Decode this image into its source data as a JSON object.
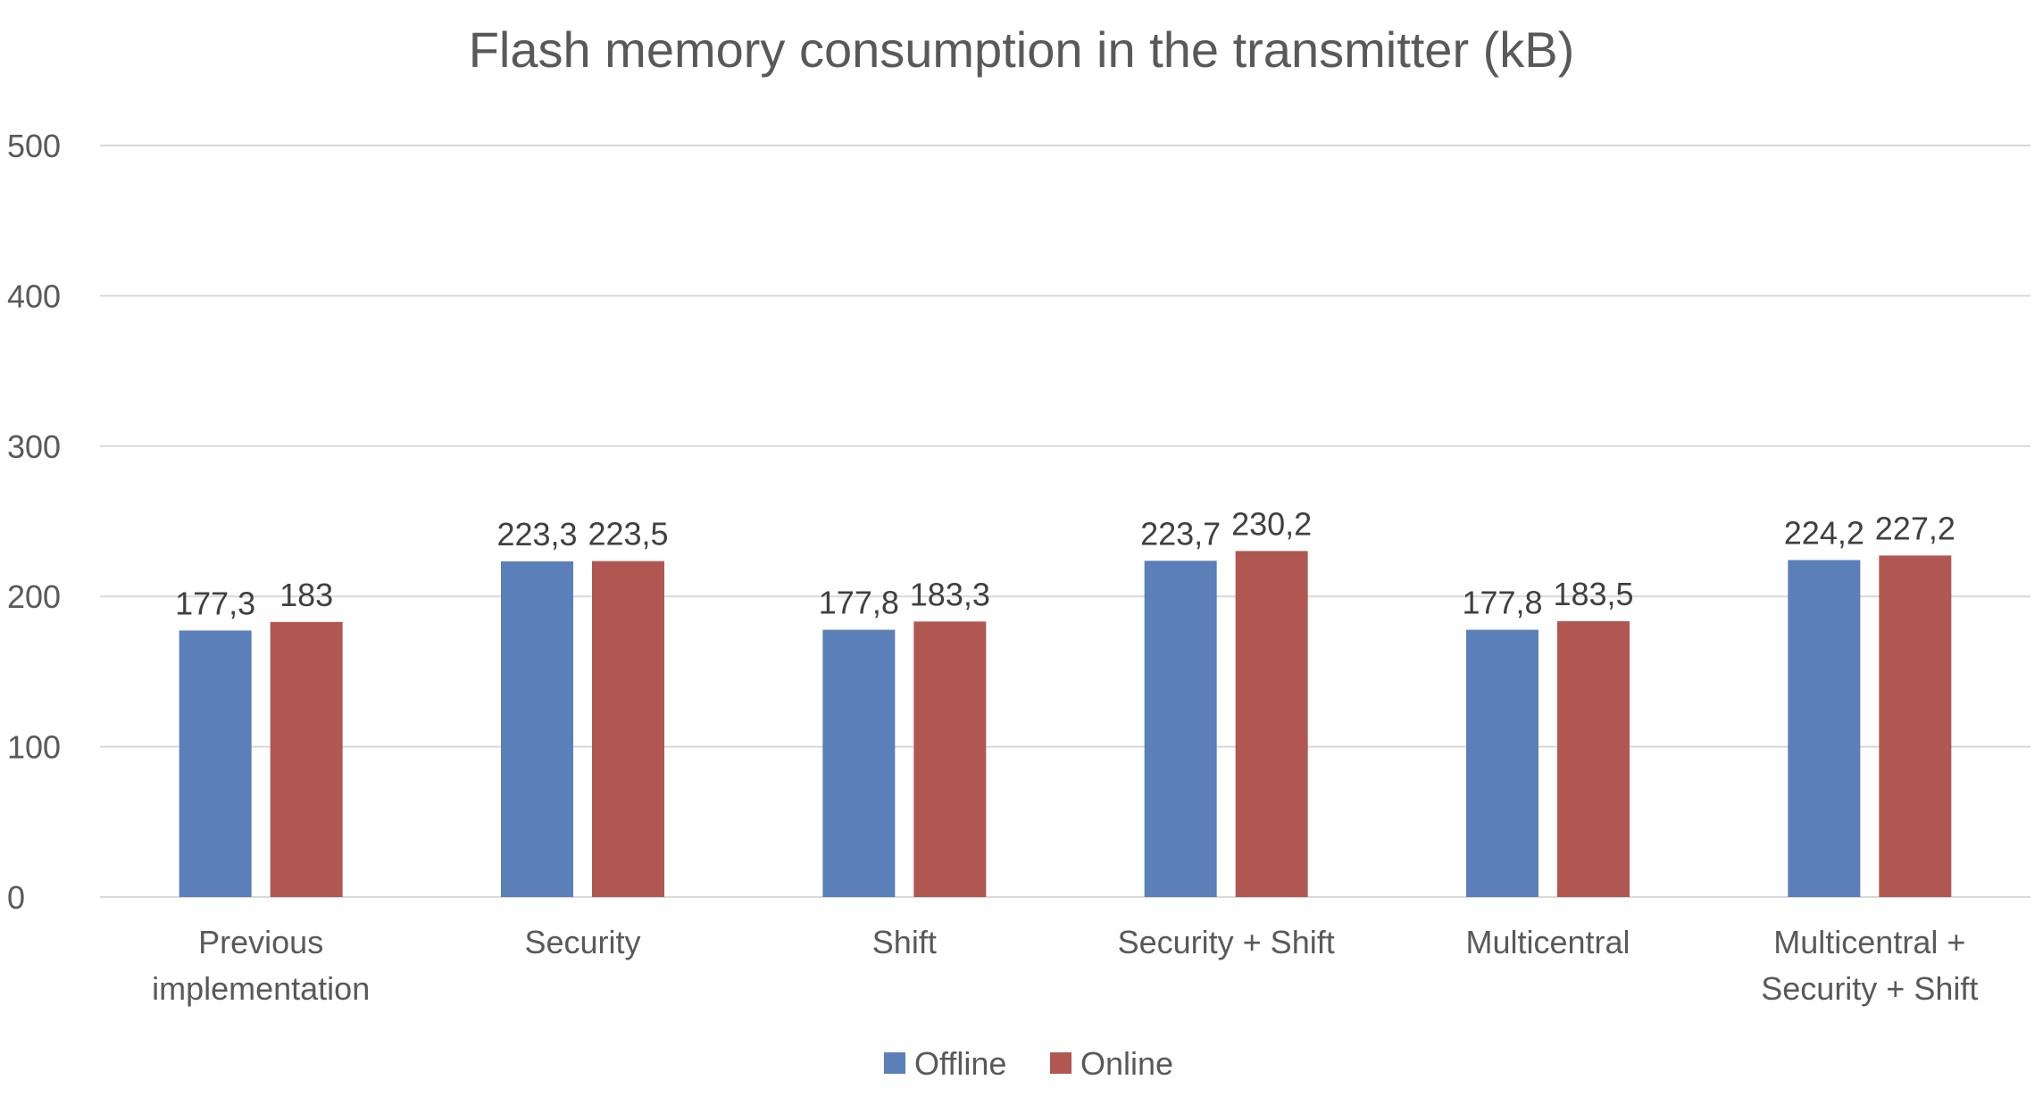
{
  "chart_data": {
    "type": "bar",
    "title": "Flash memory consumption in the transmitter (kB)",
    "xlabel": "",
    "ylabel": "",
    "ylim": [
      0,
      500
    ],
    "yticks": [
      "0",
      "100",
      "200",
      "300",
      "400",
      "500"
    ],
    "grid": true,
    "legend_position": "bottom",
    "categories": [
      [
        "Previous",
        "implementation"
      ],
      [
        "Security"
      ],
      [
        "Shift"
      ],
      [
        "Security + Shift"
      ],
      [
        "Multicentral"
      ],
      [
        "Multicentral +",
        "Security + Shift"
      ]
    ],
    "series": [
      {
        "name": "Offline",
        "color": "#5b7fb8",
        "values": [
          177.3,
          223.3,
          177.8,
          223.7,
          177.8,
          224.2
        ],
        "labels": [
          "177,3",
          "223,3",
          "177,8",
          "223,7",
          "177,8",
          "224,2"
        ]
      },
      {
        "name": "Online",
        "color": "#b15752",
        "values": [
          183,
          223.5,
          183.3,
          230.2,
          183.5,
          227.2
        ],
        "labels": [
          "183",
          "223,5",
          "183,3",
          "230,2",
          "183,5",
          "227,2"
        ]
      }
    ]
  }
}
